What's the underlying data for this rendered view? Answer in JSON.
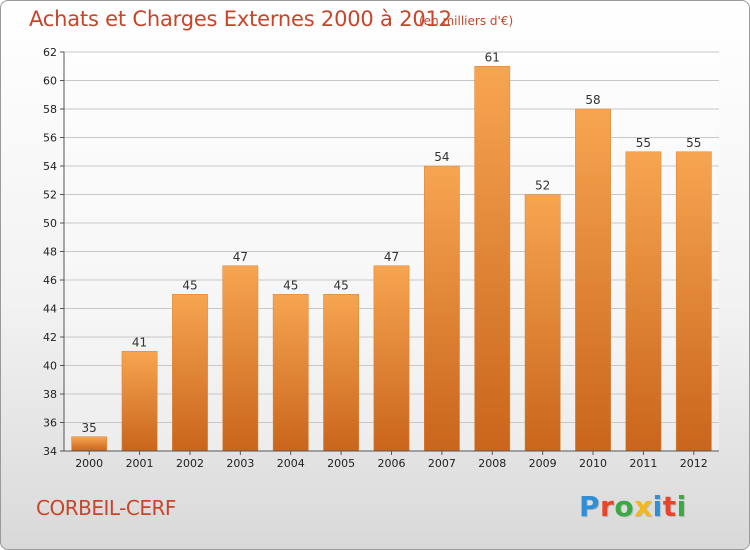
{
  "header": {
    "title": "Achats et Charges Externes 2000 à 2012",
    "subtitle": "(en milliers d'€)"
  },
  "footer": {
    "commune": "CORBEIL-CERF",
    "logo_letters": [
      "P",
      "r",
      "o",
      "x",
      "i",
      "t",
      "i"
    ],
    "logo_colors": [
      "#2e8fd6",
      "#e8462b",
      "#3aa845",
      "#f2b61e",
      "#2e8fd6",
      "#e8462b",
      "#3aa845"
    ]
  },
  "colors": {
    "bar_top": "#f7a551",
    "bar_bottom": "#c9651c",
    "grid": "#c8c8c8",
    "text_accent": "#c8452a"
  },
  "chart_data": {
    "type": "bar",
    "categories": [
      "2000",
      "2001",
      "2002",
      "2003",
      "2004",
      "2005",
      "2006",
      "2007",
      "2008",
      "2009",
      "2010",
      "2011",
      "2012"
    ],
    "values": [
      35,
      41,
      45,
      47,
      45,
      45,
      47,
      54,
      61,
      52,
      58,
      55,
      55
    ],
    "title": "Achats et Charges Externes 2000 à 2012",
    "subtitle": "(en milliers d'€)",
    "xlabel": "",
    "ylabel": "",
    "ylim": [
      34,
      62
    ],
    "yticks": [
      34,
      36,
      38,
      40,
      42,
      44,
      46,
      48,
      50,
      52,
      54,
      56,
      58,
      60,
      62
    ],
    "grid": true,
    "data_labels": true
  }
}
